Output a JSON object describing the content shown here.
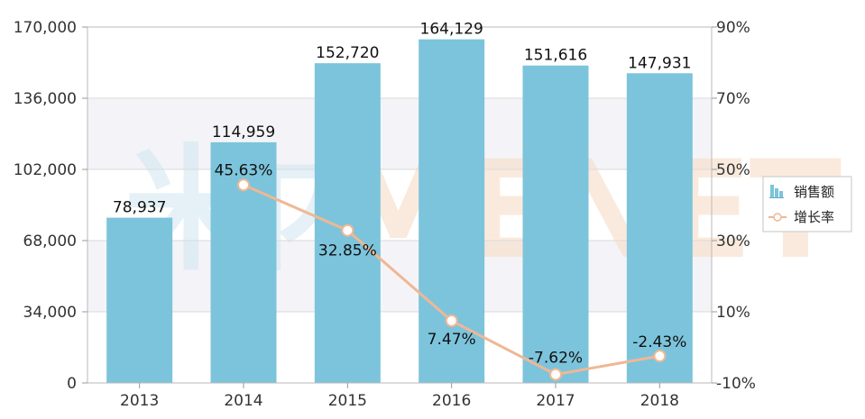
{
  "chart_data": {
    "type": "bar",
    "categories": [
      "2013",
      "2014",
      "2015",
      "2016",
      "2017",
      "2018"
    ],
    "series": [
      {
        "name": "销售额",
        "type": "bar",
        "axis": "left",
        "values": [
          78937,
          114959,
          152720,
          164129,
          151616,
          147931
        ],
        "labels": [
          "78,937",
          "114,959",
          "152,720",
          "164,129",
          "151,616",
          "147,931"
        ],
        "color": "#7cc4dc"
      },
      {
        "name": "增长率",
        "type": "line",
        "axis": "right",
        "values": [
          null,
          45.63,
          32.85,
          7.47,
          -7.62,
          -2.43
        ],
        "labels": [
          "",
          "45.63%",
          "32.85%",
          "7.47%",
          "-7.62%",
          "-2.43%"
        ],
        "color": "#f0b794"
      }
    ],
    "y_left": {
      "range": [
        0,
        170000
      ],
      "ticks": [
        0,
        34000,
        68000,
        102000,
        136000,
        170000
      ],
      "tick_labels": [
        "0",
        "34,000",
        "68,000",
        "102,000",
        "136,000",
        "170,000"
      ]
    },
    "y_right": {
      "range": [
        -10,
        90
      ],
      "ticks": [
        -10,
        10,
        30,
        50,
        70,
        90
      ],
      "tick_labels": [
        "-10%",
        "10%",
        "30%",
        "50%",
        "70%",
        "90%"
      ]
    },
    "grid": "horizontal",
    "legend_position": "right",
    "watermark": "MENET"
  }
}
